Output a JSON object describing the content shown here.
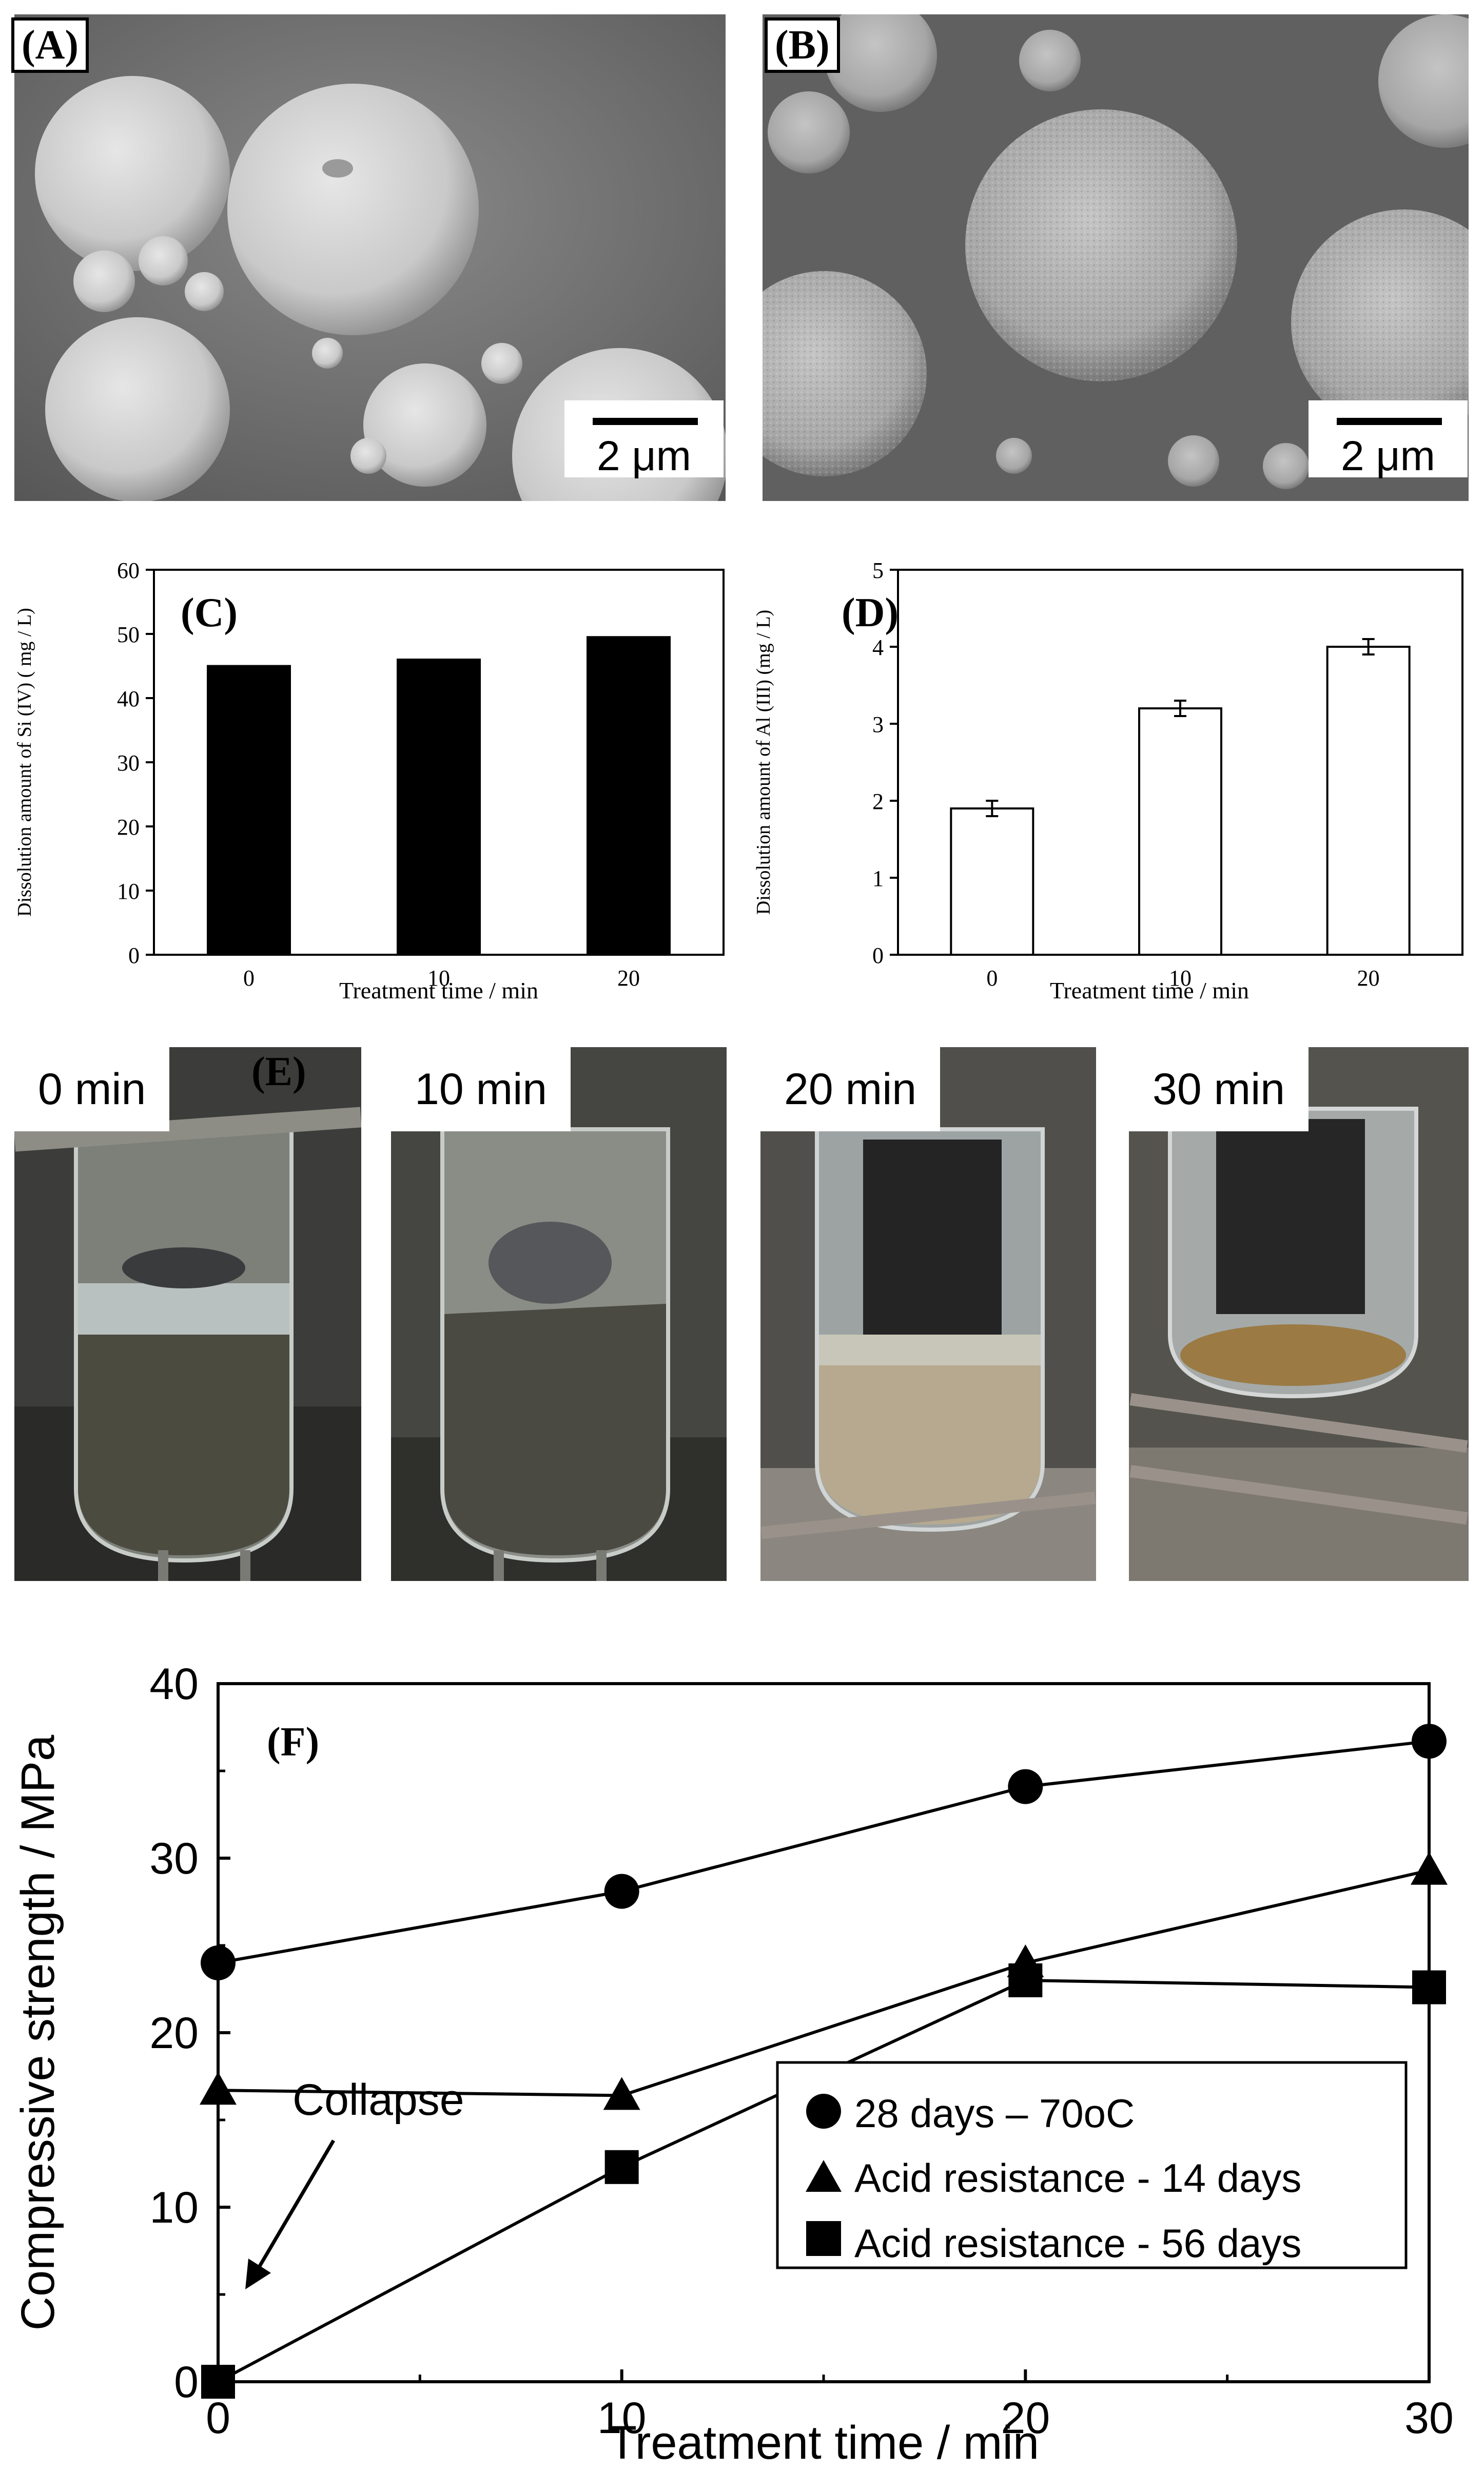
{
  "panels": {
    "A": {
      "label": "(A)",
      "scale": "2 μm"
    },
    "B": {
      "label": "(B)",
      "scale": "2 μm"
    },
    "C": {
      "label": "(C)"
    },
    "D": {
      "label": "(D)"
    },
    "E": {
      "label": "(E)",
      "times": [
        "0 min",
        "10 min",
        "20 min",
        "30 min"
      ]
    },
    "F": {
      "label": "(F)",
      "annotation": "Collapse"
    }
  },
  "chart_data": [
    {
      "id": "C",
      "type": "bar",
      "categories": [
        "0",
        "10",
        "20"
      ],
      "values": [
        45,
        46,
        49.5
      ],
      "xlabel": "Treatment time / min",
      "ylabel": "Dissolution amount of Si (IV) ( mg / L)",
      "ylim": [
        0,
        60
      ],
      "yticks": [
        "0",
        "10",
        "20",
        "30",
        "40",
        "50",
        "60"
      ],
      "bar_color": "#000000"
    },
    {
      "id": "D",
      "type": "bar",
      "categories": [
        "0",
        "10",
        "20"
      ],
      "values": [
        1.9,
        3.2,
        4.0
      ],
      "errors": [
        0.1,
        0.1,
        0.1
      ],
      "xlabel": "Treatment time / min",
      "ylabel": "Dissolution amount of  Al (III)  (mg / L)",
      "ylim": [
        0,
        5
      ],
      "yticks": [
        "0",
        "1",
        "2",
        "3",
        "4",
        "5"
      ],
      "bar_color": "#ffffff"
    },
    {
      "id": "F",
      "type": "line",
      "x": [
        0,
        10,
        20,
        30
      ],
      "xticks": [
        "0",
        "10",
        "20",
        "30"
      ],
      "yticks": [
        "0",
        "10",
        "20",
        "30",
        "40"
      ],
      "xlabel": "Treatment time / min",
      "ylabel": "Compressive strength / MPa",
      "xlim": [
        0,
        30
      ],
      "ylim": [
        0,
        40
      ],
      "legend_position": "bottom-right",
      "series": [
        {
          "name": "28 days – 70oC",
          "marker": "circle",
          "values": [
            24,
            28.1,
            34.1,
            36.7
          ]
        },
        {
          "name": "Acid resistance - 14 days",
          "marker": "triangle",
          "values": [
            16.7,
            16.4,
            24,
            29.3
          ]
        },
        {
          "name": "Acid resistance - 56 days",
          "marker": "square",
          "values": [
            0,
            12.3,
            23,
            22.6
          ]
        }
      ]
    }
  ]
}
